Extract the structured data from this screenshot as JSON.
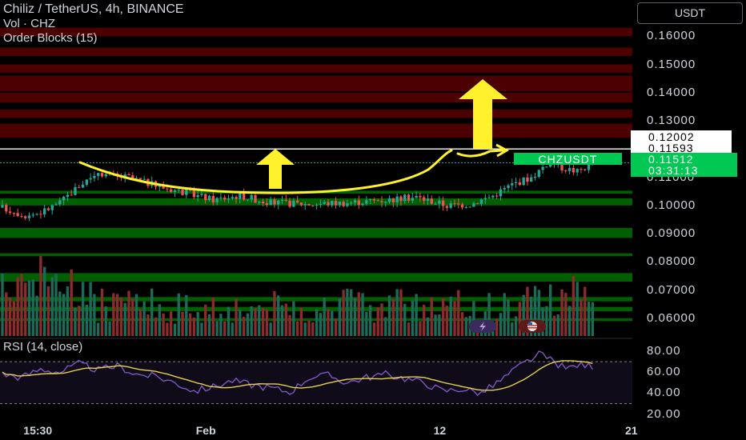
{
  "header": {
    "title": "Chiliz / TetherUS, 4h, BINANCE",
    "volume_label": "Vol · CHZ",
    "indicator_label": "Order Blocks (15)",
    "currency_button": "USDT"
  },
  "price_labels": {
    "resistance": "0.12002",
    "high": "0.11593",
    "symbol": "CHZUSDT",
    "last": "0.11512",
    "countdown": "03:31:13"
  },
  "rsi": {
    "title": "RSI (14, close)",
    "ticks": [
      "80.00",
      "60.00",
      "40.00",
      "20.00"
    ],
    "tick_values": [
      80,
      60,
      40,
      20
    ],
    "upper_band": 70,
    "lower_band": 30
  },
  "chart_data": {
    "type": "candlestick",
    "symbol": "CHZUSDT",
    "interval": "4h",
    "exchange": "BINANCE",
    "y_ticks": [
      "0.16000",
      "0.15000",
      "0.14000",
      "0.13000",
      "0.12000",
      "0.11000",
      "0.10000",
      "0.09000",
      "0.08000",
      "0.07000",
      "0.06000"
    ],
    "y_tick_values": [
      0.16,
      0.15,
      0.14,
      0.13,
      0.12,
      0.11,
      0.1,
      0.09,
      0.08,
      0.07,
      0.06
    ],
    "ylim": [
      0.0537,
      0.1666
    ],
    "x_ticks": [
      "15:30",
      "Feb",
      "12",
      "21"
    ],
    "x_tick_index": [
      8,
      53,
      115,
      165
    ],
    "candle_count": 155,
    "close_path": [
      [
        0,
        0.0992
      ],
      [
        6,
        0.0965
      ],
      [
        10,
        0.0975
      ],
      [
        15,
        0.101
      ],
      [
        20,
        0.107
      ],
      [
        25,
        0.112
      ],
      [
        28,
        0.1105
      ],
      [
        33,
        0.11
      ],
      [
        40,
        0.107
      ],
      [
        48,
        0.1045
      ],
      [
        55,
        0.102
      ],
      [
        62,
        0.1035
      ],
      [
        70,
        0.101
      ],
      [
        80,
        0.1005
      ],
      [
        90,
        0.101
      ],
      [
        100,
        0.102
      ],
      [
        108,
        0.103
      ],
      [
        116,
        0.1
      ],
      [
        122,
        0.1005
      ],
      [
        128,
        0.1035
      ],
      [
        133,
        0.1075
      ],
      [
        138,
        0.11
      ],
      [
        143,
        0.116
      ],
      [
        146,
        0.1135
      ],
      [
        150,
        0.112
      ],
      [
        154,
        0.1151
      ]
    ],
    "rsi_path": [
      [
        0,
        58
      ],
      [
        5,
        55
      ],
      [
        10,
        63
      ],
      [
        15,
        60
      ],
      [
        20,
        68
      ],
      [
        25,
        62
      ],
      [
        30,
        66
      ],
      [
        35,
        58
      ],
      [
        40,
        56
      ],
      [
        45,
        50
      ],
      [
        50,
        42
      ],
      [
        55,
        46
      ],
      [
        60,
        52
      ],
      [
        65,
        48
      ],
      [
        70,
        45
      ],
      [
        75,
        41
      ],
      [
        80,
        55
      ],
      [
        85,
        57
      ],
      [
        90,
        50
      ],
      [
        95,
        55
      ],
      [
        100,
        58
      ],
      [
        105,
        54
      ],
      [
        110,
        50
      ],
      [
        115,
        42
      ],
      [
        120,
        44
      ],
      [
        125,
        40
      ],
      [
        130,
        52
      ],
      [
        135,
        66
      ],
      [
        140,
        77
      ],
      [
        143,
        72
      ],
      [
        147,
        63
      ],
      [
        150,
        67
      ],
      [
        154,
        66
      ]
    ],
    "volume_range": [
      0,
      1
    ],
    "sell_zones": [
      [
        0.16,
        0.163
      ],
      [
        0.153,
        0.156
      ],
      [
        0.147,
        0.15
      ],
      [
        0.1405,
        0.146
      ],
      [
        0.1365,
        0.14
      ],
      [
        0.131,
        0.134
      ],
      [
        0.124,
        0.129
      ]
    ],
    "buy_zones": [
      [
        0.1042,
        0.1052
      ],
      [
        0.1,
        0.1025
      ],
      [
        0.0885,
        0.092
      ],
      [
        0.082,
        0.083
      ],
      [
        0.073,
        0.076
      ],
      [
        0.066,
        0.0675
      ],
      [
        0.0625,
        0.064
      ],
      [
        0.059,
        0.06
      ]
    ],
    "resistance_level": 0.12002,
    "last_price": 0.11512,
    "colors": {
      "up": "#26a69a",
      "down": "#ef5350",
      "sell_zone": "#8b0000",
      "buy_zone": "#00a000",
      "annotation": "#fff12b",
      "rsi_line": "#7e57c2",
      "rsi_ma": "#e6d14a"
    }
  }
}
